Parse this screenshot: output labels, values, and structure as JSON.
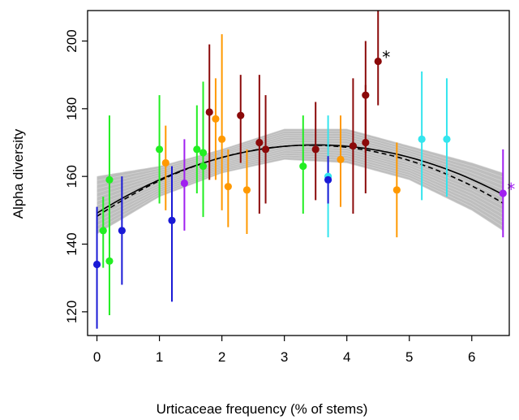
{
  "chart_data": {
    "type": "scatter",
    "xlabel": "Urticaceae frequency (% of stems)",
    "ylabel": "Alpha diversity",
    "xlim": [
      -0.15,
      6.6
    ],
    "ylim": [
      113,
      209
    ],
    "x_ticks": [
      "0",
      "1",
      "2",
      "3",
      "4",
      "5",
      "6"
    ],
    "y_ticks": [
      "120",
      "140",
      "160",
      "180",
      "200"
    ],
    "grid": false,
    "legend": "none",
    "colors": {
      "blue": "#1a1ad6",
      "green": "#22ee22",
      "orange": "#ff9900",
      "darkred": "#8b0a0a",
      "purple": "#a020f0",
      "cyan": "#33e5ee",
      "fit": "#000000",
      "band": "#bebebe"
    },
    "points": [
      {
        "x": 0.0,
        "y": 134,
        "lo": 115,
        "hi": 151,
        "color": "blue"
      },
      {
        "x": 0.1,
        "y": 144,
        "lo": 133,
        "hi": 154,
        "color": "green"
      },
      {
        "x": 0.2,
        "y": 159,
        "lo": 140,
        "hi": 178,
        "color": "green"
      },
      {
        "x": 0.2,
        "y": 135,
        "lo": 119,
        "hi": 150,
        "color": "green"
      },
      {
        "x": 0.4,
        "y": 144,
        "lo": 128,
        "hi": 160,
        "color": "blue"
      },
      {
        "x": 1.0,
        "y": 168,
        "lo": 152,
        "hi": 184,
        "color": "green"
      },
      {
        "x": 1.1,
        "y": 164,
        "lo": 150,
        "hi": 175,
        "color": "orange"
      },
      {
        "x": 1.2,
        "y": 147,
        "lo": 123,
        "hi": 163,
        "color": "blue"
      },
      {
        "x": 1.4,
        "y": 158,
        "lo": 144,
        "hi": 171,
        "color": "purple"
      },
      {
        "x": 1.6,
        "y": 168,
        "lo": 155,
        "hi": 181,
        "color": "green"
      },
      {
        "x": 1.7,
        "y": 167,
        "lo": 148,
        "hi": 188,
        "color": "green"
      },
      {
        "x": 1.7,
        "y": 163,
        "lo": 152,
        "hi": 178,
        "color": "green"
      },
      {
        "x": 1.8,
        "y": 179,
        "lo": 159,
        "hi": 199,
        "color": "darkred"
      },
      {
        "x": 1.9,
        "y": 177,
        "lo": 159,
        "hi": 189,
        "color": "orange"
      },
      {
        "x": 2.0,
        "y": 171,
        "lo": 150,
        "hi": 202,
        "color": "orange"
      },
      {
        "x": 2.1,
        "y": 157,
        "lo": 145,
        "hi": 168,
        "color": "orange"
      },
      {
        "x": 2.3,
        "y": 178,
        "lo": 164,
        "hi": 190,
        "color": "darkred"
      },
      {
        "x": 2.4,
        "y": 156,
        "lo": 143,
        "hi": 168,
        "color": "orange"
      },
      {
        "x": 2.6,
        "y": 170,
        "lo": 149,
        "hi": 190,
        "color": "darkred"
      },
      {
        "x": 2.7,
        "y": 168,
        "lo": 152,
        "hi": 184,
        "color": "darkred"
      },
      {
        "x": 3.3,
        "y": 163,
        "lo": 149,
        "hi": 178,
        "color": "green"
      },
      {
        "x": 3.5,
        "y": 168,
        "lo": 153,
        "hi": 182,
        "color": "darkred"
      },
      {
        "x": 3.7,
        "y": 160,
        "lo": 142,
        "hi": 178,
        "color": "cyan"
      },
      {
        "x": 3.7,
        "y": 159,
        "lo": 152,
        "hi": 166,
        "color": "blue"
      },
      {
        "x": 3.9,
        "y": 165,
        "lo": 151,
        "hi": 178,
        "color": "orange"
      },
      {
        "x": 4.1,
        "y": 169,
        "lo": 149,
        "hi": 189,
        "color": "darkred"
      },
      {
        "x": 4.3,
        "y": 184,
        "lo": 167,
        "hi": 200,
        "color": "darkred"
      },
      {
        "x": 4.3,
        "y": 170,
        "lo": 155,
        "hi": 187,
        "color": "darkred"
      },
      {
        "x": 4.5,
        "y": 194,
        "lo": 181,
        "hi": 209,
        "color": "darkred",
        "mark": "*",
        "mark_color": "#000000"
      },
      {
        "x": 4.8,
        "y": 156,
        "lo": 142,
        "hi": 170,
        "color": "orange"
      },
      {
        "x": 5.2,
        "y": 171,
        "lo": 153,
        "hi": 191,
        "color": "cyan"
      },
      {
        "x": 5.6,
        "y": 171,
        "lo": 154,
        "hi": 189,
        "color": "cyan"
      },
      {
        "x": 6.5,
        "y": 155,
        "lo": 142,
        "hi": 168,
        "color": "purple",
        "mark": "*",
        "mark_color": "#a020f0"
      }
    ],
    "fit": {
      "solid": {
        "a": 149.15,
        "b": 11.5,
        "c": -1.64
      },
      "dashed": {
        "a": 148.2,
        "b": 12.3,
        "c": -1.8
      },
      "band": {
        "lower": [
          [
            0,
            143
          ],
          [
            1,
            154
          ],
          [
            2,
            161
          ],
          [
            3,
            165
          ],
          [
            4,
            164
          ],
          [
            5,
            159
          ],
          [
            6,
            150
          ],
          [
            6.5,
            144
          ]
        ],
        "upper": [
          [
            0,
            160
          ],
          [
            1,
            163
          ],
          [
            2,
            168
          ],
          [
            3,
            174
          ],
          [
            4,
            174
          ],
          [
            5,
            169
          ],
          [
            6,
            164
          ],
          [
            6.5,
            161
          ]
        ]
      }
    }
  }
}
